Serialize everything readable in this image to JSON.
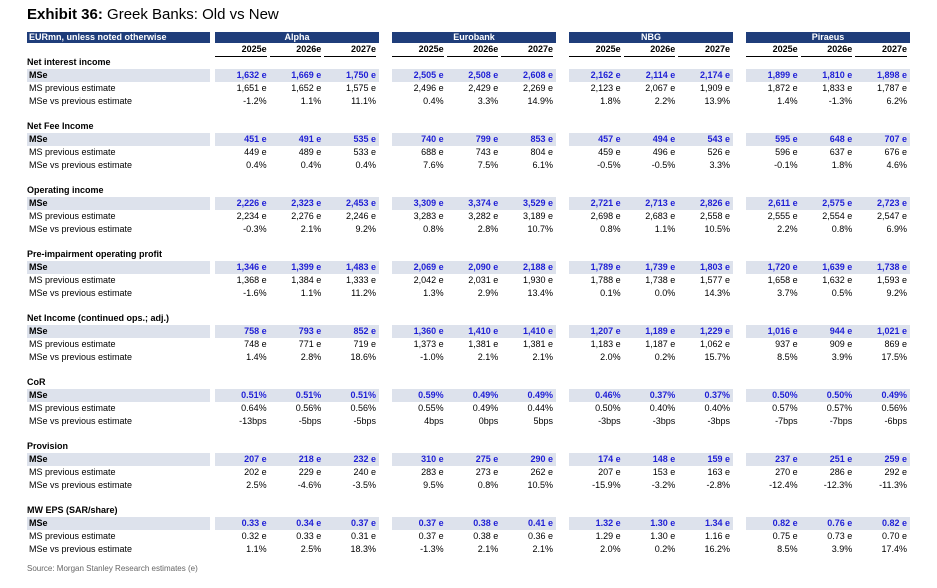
{
  "title": {
    "exhibit": "Exhibit 36:",
    "text": "Greek Banks: Old vs New"
  },
  "header_label": "EURmn, unless noted otherwise",
  "banks": [
    {
      "name": "Alpha",
      "years": [
        "2025e",
        "2026e",
        "2027e"
      ]
    },
    {
      "name": "Eurobank",
      "years": [
        "2025e",
        "2026e",
        "2027e"
      ]
    },
    {
      "name": "NBG",
      "years": [
        "2025e",
        "2026e",
        "2027e"
      ]
    },
    {
      "name": "Piraeus",
      "years": [
        "2025e",
        "2026e",
        "2027e"
      ]
    }
  ],
  "sections": [
    {
      "title": "Net interest income",
      "rows": [
        {
          "label": "MSe",
          "cells": [
            "1,632 e",
            "1,669 e",
            "1,750 e",
            "2,505 e",
            "2,508 e",
            "2,608 e",
            "2,162 e",
            "2,114 e",
            "2,174 e",
            "1,899 e",
            "1,810 e",
            "1,898 e"
          ]
        },
        {
          "label": "MS previous estimate",
          "cells": [
            "1,651 e",
            "1,652 e",
            "1,575 e",
            "2,496 e",
            "2,429 e",
            "2,269 e",
            "2,123 e",
            "2,067 e",
            "1,909 e",
            "1,872 e",
            "1,833 e",
            "1,787 e"
          ]
        },
        {
          "label": "MSe vs previous estimate",
          "cells": [
            "-1.2%",
            "1.1%",
            "11.1%",
            "0.4%",
            "3.3%",
            "14.9%",
            "1.8%",
            "2.2%",
            "13.9%",
            "1.4%",
            "-1.3%",
            "6.2%"
          ]
        }
      ]
    },
    {
      "title": "Net Fee Income",
      "rows": [
        {
          "label": "MSe",
          "cells": [
            "451 e",
            "491 e",
            "535 e",
            "740 e",
            "799 e",
            "853 e",
            "457 e",
            "494 e",
            "543 e",
            "595 e",
            "648 e",
            "707 e"
          ]
        },
        {
          "label": "MS previous estimate",
          "cells": [
            "449 e",
            "489 e",
            "533 e",
            "688 e",
            "743 e",
            "804 e",
            "459 e",
            "496 e",
            "526 e",
            "596 e",
            "637 e",
            "676 e"
          ]
        },
        {
          "label": "MSe vs previous estimate",
          "cells": [
            "0.4%",
            "0.4%",
            "0.4%",
            "7.6%",
            "7.5%",
            "6.1%",
            "-0.5%",
            "-0.5%",
            "3.3%",
            "-0.1%",
            "1.8%",
            "4.6%"
          ]
        }
      ]
    },
    {
      "title": "Operating income",
      "rows": [
        {
          "label": "MSe",
          "cells": [
            "2,226 e",
            "2,323 e",
            "2,453 e",
            "3,309 e",
            "3,374 e",
            "3,529 e",
            "2,721 e",
            "2,713 e",
            "2,826 e",
            "2,611 e",
            "2,575 e",
            "2,723 e"
          ]
        },
        {
          "label": "MS previous estimate",
          "cells": [
            "2,234 e",
            "2,276 e",
            "2,246 e",
            "3,283 e",
            "3,282 e",
            "3,189 e",
            "2,698 e",
            "2,683 e",
            "2,558 e",
            "2,555 e",
            "2,554 e",
            "2,547 e"
          ]
        },
        {
          "label": "MSe vs previous estimate",
          "cells": [
            "-0.3%",
            "2.1%",
            "9.2%",
            "0.8%",
            "2.8%",
            "10.7%",
            "0.8%",
            "1.1%",
            "10.5%",
            "2.2%",
            "0.8%",
            "6.9%"
          ]
        }
      ]
    },
    {
      "title": "Pre-impairment operating profit",
      "rows": [
        {
          "label": "MSe",
          "cells": [
            "1,346 e",
            "1,399 e",
            "1,483 e",
            "2,069 e",
            "2,090 e",
            "2,188 e",
            "1,789 e",
            "1,739 e",
            "1,803 e",
            "1,720 e",
            "1,639 e",
            "1,738 e"
          ]
        },
        {
          "label": "MS previous estimate",
          "cells": [
            "1,368 e",
            "1,384 e",
            "1,333 e",
            "2,042 e",
            "2,031 e",
            "1,930 e",
            "1,788 e",
            "1,738 e",
            "1,577 e",
            "1,658 e",
            "1,632 e",
            "1,593 e"
          ]
        },
        {
          "label": "MSe vs previous estimate",
          "cells": [
            "-1.6%",
            "1.1%",
            "11.2%",
            "1.3%",
            "2.9%",
            "13.4%",
            "0.1%",
            "0.0%",
            "14.3%",
            "3.7%",
            "0.5%",
            "9.2%"
          ]
        }
      ]
    },
    {
      "title": "Net Income (continued ops.; adj.)",
      "rows": [
        {
          "label": "MSe",
          "cells": [
            "758 e",
            "793 e",
            "852 e",
            "1,360 e",
            "1,410 e",
            "1,410 e",
            "1,207 e",
            "1,189 e",
            "1,229 e",
            "1,016 e",
            "944 e",
            "1,021 e"
          ]
        },
        {
          "label": "MS previous estimate",
          "cells": [
            "748 e",
            "771 e",
            "719 e",
            "1,373 e",
            "1,381 e",
            "1,381 e",
            "1,183 e",
            "1,187 e",
            "1,062 e",
            "937 e",
            "909 e",
            "869 e"
          ]
        },
        {
          "label": "MSe vs previous estimate",
          "cells": [
            "1.4%",
            "2.8%",
            "18.6%",
            "-1.0%",
            "2.1%",
            "2.1%",
            "2.0%",
            "0.2%",
            "15.7%",
            "8.5%",
            "3.9%",
            "17.5%"
          ]
        }
      ]
    },
    {
      "title": "CoR",
      "rows": [
        {
          "label": "MSe",
          "cells": [
            "0.51%",
            "0.51%",
            "0.51%",
            "0.59%",
            "0.49%",
            "0.49%",
            "0.46%",
            "0.37%",
            "0.37%",
            "0.50%",
            "0.50%",
            "0.49%"
          ]
        },
        {
          "label": "MS previous estimate",
          "cells": [
            "0.64%",
            "0.56%",
            "0.56%",
            "0.55%",
            "0.49%",
            "0.44%",
            "0.50%",
            "0.40%",
            "0.40%",
            "0.57%",
            "0.57%",
            "0.56%"
          ]
        },
        {
          "label": "MSe vs previous estimate",
          "cells": [
            "-13bps",
            "-5bps",
            "-5bps",
            "4bps",
            "0bps",
            "5bps",
            "-3bps",
            "-3bps",
            "-3bps",
            "-7bps",
            "-7bps",
            "-6bps"
          ]
        }
      ]
    },
    {
      "title": "Provision",
      "rows": [
        {
          "label": "MSe",
          "cells": [
            "207 e",
            "218 e",
            "232 e",
            "310 e",
            "275 e",
            "290 e",
            "174 e",
            "148 e",
            "159 e",
            "237 e",
            "251 e",
            "259 e"
          ]
        },
        {
          "label": "MS previous estimate",
          "cells": [
            "202 e",
            "229 e",
            "240 e",
            "283 e",
            "273 e",
            "262 e",
            "207 e",
            "153 e",
            "163 e",
            "270 e",
            "286 e",
            "292 e"
          ]
        },
        {
          "label": "MSe vs previous estimate",
          "cells": [
            "2.5%",
            "-4.6%",
            "-3.5%",
            "9.5%",
            "0.8%",
            "10.5%",
            "-15.9%",
            "-3.2%",
            "-2.8%",
            "-12.4%",
            "-12.3%",
            "-11.3%"
          ]
        }
      ]
    },
    {
      "title": "MW EPS (SAR/share)",
      "rows": [
        {
          "label": "MSe",
          "cells": [
            "0.33 e",
            "0.34 e",
            "0.37 e",
            "0.37 e",
            "0.38 e",
            "0.41 e",
            "1.32 e",
            "1.30 e",
            "1.34 e",
            "0.82 e",
            "0.76 e",
            "0.82 e"
          ]
        },
        {
          "label": "MS previous estimate",
          "cells": [
            "0.32 e",
            "0.33 e",
            "0.31 e",
            "0.37 e",
            "0.38 e",
            "0.36 e",
            "1.29 e",
            "1.30 e",
            "1.16 e",
            "0.75 e",
            "0.73 e",
            "0.70 e"
          ]
        },
        {
          "label": "MSe vs previous estimate",
          "cells": [
            "1.1%",
            "2.5%",
            "18.3%",
            "-1.3%",
            "2.1%",
            "2.1%",
            "2.0%",
            "0.2%",
            "16.2%",
            "8.5%",
            "3.9%",
            "17.4%"
          ]
        }
      ]
    }
  ],
  "source": "Source: Morgan Stanley Research estimates (e)"
}
